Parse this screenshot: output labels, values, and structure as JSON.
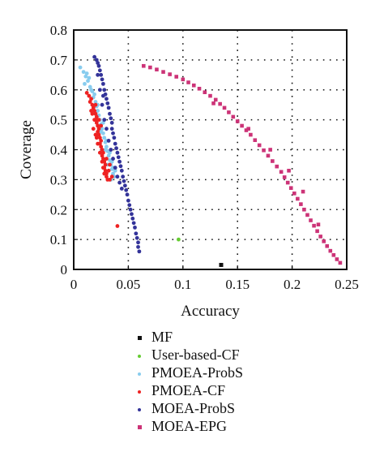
{
  "chart_data": {
    "type": "scatter",
    "xlabel": "Accuracy",
    "ylabel": "Coverage",
    "xlim": [
      0,
      0.25
    ],
    "ylim": [
      0,
      0.8
    ],
    "x_ticks": [
      "0",
      "0.05",
      "0.1",
      "0.15",
      "0.2",
      "0.25"
    ],
    "y_ticks": [
      "0",
      "0.1",
      "0.2",
      "0.3",
      "0.4",
      "0.5",
      "0.6",
      "0.7",
      "0.8"
    ],
    "grid": true,
    "legend_position": "below",
    "series": [
      {
        "name": "MF",
        "color": "#111111",
        "marker": "square",
        "points": [
          [
            0.135,
            0.015
          ]
        ]
      },
      {
        "name": "User-based-CF",
        "color": "#66cc33",
        "marker": "dot",
        "points": [
          [
            0.096,
            0.1
          ]
        ]
      },
      {
        "name": "PMOEA-ProbS",
        "color": "#88ccee",
        "marker": "dot",
        "points": [
          [
            0.006,
            0.675
          ],
          [
            0.009,
            0.66
          ],
          [
            0.011,
            0.645
          ],
          [
            0.013,
            0.63
          ],
          [
            0.015,
            0.61
          ],
          [
            0.017,
            0.595
          ],
          [
            0.018,
            0.575
          ],
          [
            0.02,
            0.56
          ],
          [
            0.021,
            0.545
          ],
          [
            0.022,
            0.53
          ],
          [
            0.023,
            0.515
          ],
          [
            0.024,
            0.5
          ],
          [
            0.025,
            0.485
          ],
          [
            0.026,
            0.47
          ],
          [
            0.027,
            0.455
          ],
          [
            0.028,
            0.44
          ],
          [
            0.029,
            0.425
          ],
          [
            0.03,
            0.41
          ],
          [
            0.031,
            0.395
          ],
          [
            0.032,
            0.38
          ],
          [
            0.033,
            0.365
          ],
          [
            0.034,
            0.35
          ],
          [
            0.035,
            0.335
          ],
          [
            0.036,
            0.32
          ],
          [
            0.037,
            0.31
          ],
          [
            0.012,
            0.655
          ],
          [
            0.016,
            0.6
          ],
          [
            0.019,
            0.585
          ],
          [
            0.022,
            0.55
          ],
          [
            0.027,
            0.49
          ],
          [
            0.03,
            0.43
          ],
          [
            0.033,
            0.39
          ],
          [
            0.036,
            0.34
          ],
          [
            0.038,
            0.33
          ],
          [
            0.034,
            0.3
          ],
          [
            0.01,
            0.62
          ],
          [
            0.014,
            0.64
          ],
          [
            0.02,
            0.52
          ],
          [
            0.025,
            0.46
          ],
          [
            0.029,
            0.4
          ],
          [
            0.031,
            0.35
          ],
          [
            0.035,
            0.36
          ]
        ]
      },
      {
        "name": "PMOEA-CF",
        "color": "#ee2222",
        "marker": "dot",
        "points": [
          [
            0.012,
            0.59
          ],
          [
            0.014,
            0.58
          ],
          [
            0.016,
            0.57
          ],
          [
            0.017,
            0.55
          ],
          [
            0.018,
            0.54
          ],
          [
            0.019,
            0.53
          ],
          [
            0.02,
            0.52
          ],
          [
            0.02,
            0.5
          ],
          [
            0.021,
            0.49
          ],
          [
            0.022,
            0.48
          ],
          [
            0.022,
            0.46
          ],
          [
            0.023,
            0.45
          ],
          [
            0.024,
            0.44
          ],
          [
            0.024,
            0.42
          ],
          [
            0.025,
            0.41
          ],
          [
            0.026,
            0.4
          ],
          [
            0.026,
            0.38
          ],
          [
            0.027,
            0.37
          ],
          [
            0.028,
            0.36
          ],
          [
            0.028,
            0.34
          ],
          [
            0.029,
            0.33
          ],
          [
            0.03,
            0.32
          ],
          [
            0.03,
            0.31
          ],
          [
            0.031,
            0.3
          ],
          [
            0.033,
            0.3
          ],
          [
            0.035,
            0.31
          ],
          [
            0.015,
            0.56
          ],
          [
            0.017,
            0.52
          ],
          [
            0.019,
            0.5
          ],
          [
            0.021,
            0.51
          ],
          [
            0.023,
            0.47
          ],
          [
            0.025,
            0.43
          ],
          [
            0.027,
            0.39
          ],
          [
            0.029,
            0.35
          ],
          [
            0.032,
            0.33
          ],
          [
            0.018,
            0.47
          ],
          [
            0.02,
            0.45
          ],
          [
            0.022,
            0.42
          ],
          [
            0.024,
            0.39
          ],
          [
            0.026,
            0.36
          ],
          [
            0.028,
            0.32
          ],
          [
            0.016,
            0.53
          ],
          [
            0.02,
            0.55
          ],
          [
            0.023,
            0.5
          ],
          [
            0.025,
            0.48
          ],
          [
            0.03,
            0.37
          ],
          [
            0.033,
            0.35
          ],
          [
            0.021,
            0.44
          ],
          [
            0.027,
            0.34
          ],
          [
            0.04,
            0.145
          ]
        ]
      },
      {
        "name": "MOEA-ProbS",
        "color": "#333399",
        "marker": "dot",
        "points": [
          [
            0.019,
            0.71
          ],
          [
            0.021,
            0.7
          ],
          [
            0.022,
            0.69
          ],
          [
            0.023,
            0.68
          ],
          [
            0.024,
            0.665
          ],
          [
            0.025,
            0.65
          ],
          [
            0.026,
            0.635
          ],
          [
            0.027,
            0.62
          ],
          [
            0.028,
            0.6
          ],
          [
            0.029,
            0.585
          ],
          [
            0.03,
            0.57
          ],
          [
            0.031,
            0.555
          ],
          [
            0.032,
            0.54
          ],
          [
            0.033,
            0.52
          ],
          [
            0.034,
            0.505
          ],
          [
            0.035,
            0.49
          ],
          [
            0.035,
            0.47
          ],
          [
            0.036,
            0.455
          ],
          [
            0.037,
            0.44
          ],
          [
            0.038,
            0.42
          ],
          [
            0.039,
            0.405
          ],
          [
            0.04,
            0.39
          ],
          [
            0.041,
            0.375
          ],
          [
            0.042,
            0.36
          ],
          [
            0.043,
            0.345
          ],
          [
            0.044,
            0.33
          ],
          [
            0.045,
            0.31
          ],
          [
            0.046,
            0.295
          ],
          [
            0.047,
            0.28
          ],
          [
            0.048,
            0.265
          ],
          [
            0.049,
            0.25
          ],
          [
            0.05,
            0.23
          ],
          [
            0.051,
            0.215
          ],
          [
            0.052,
            0.2
          ],
          [
            0.053,
            0.185
          ],
          [
            0.054,
            0.17
          ],
          [
            0.055,
            0.155
          ],
          [
            0.056,
            0.14
          ],
          [
            0.057,
            0.12
          ],
          [
            0.058,
            0.105
          ],
          [
            0.059,
            0.09
          ],
          [
            0.059,
            0.075
          ],
          [
            0.06,
            0.06
          ],
          [
            0.024,
            0.6
          ],
          [
            0.026,
            0.55
          ],
          [
            0.028,
            0.5
          ],
          [
            0.03,
            0.47
          ],
          [
            0.032,
            0.43
          ],
          [
            0.034,
            0.4
          ],
          [
            0.036,
            0.37
          ],
          [
            0.038,
            0.34
          ],
          [
            0.04,
            0.31
          ],
          [
            0.042,
            0.29
          ],
          [
            0.044,
            0.27
          ],
          [
            0.022,
            0.65
          ],
          [
            0.027,
            0.58
          ]
        ]
      },
      {
        "name": "MOEA-EPG",
        "color": "#cc3377",
        "marker": "square",
        "points": [
          [
            0.064,
            0.68
          ],
          [
            0.07,
            0.675
          ],
          [
            0.076,
            0.668
          ],
          [
            0.082,
            0.66
          ],
          [
            0.088,
            0.652
          ],
          [
            0.094,
            0.644
          ],
          [
            0.1,
            0.635
          ],
          [
            0.105,
            0.625
          ],
          [
            0.11,
            0.615
          ],
          [
            0.115,
            0.604
          ],
          [
            0.12,
            0.592
          ],
          [
            0.125,
            0.58
          ],
          [
            0.13,
            0.567
          ],
          [
            0.134,
            0.553
          ],
          [
            0.138,
            0.54
          ],
          [
            0.142,
            0.525
          ],
          [
            0.146,
            0.51
          ],
          [
            0.15,
            0.495
          ],
          [
            0.154,
            0.48
          ],
          [
            0.158,
            0.465
          ],
          [
            0.162,
            0.45
          ],
          [
            0.166,
            0.432
          ],
          [
            0.17,
            0.415
          ],
          [
            0.174,
            0.398
          ],
          [
            0.178,
            0.38
          ],
          [
            0.182,
            0.362
          ],
          [
            0.186,
            0.344
          ],
          [
            0.19,
            0.326
          ],
          [
            0.193,
            0.308
          ],
          [
            0.196,
            0.29
          ],
          [
            0.199,
            0.272
          ],
          [
            0.202,
            0.254
          ],
          [
            0.205,
            0.236
          ],
          [
            0.208,
            0.218
          ],
          [
            0.211,
            0.2
          ],
          [
            0.214,
            0.182
          ],
          [
            0.217,
            0.164
          ],
          [
            0.22,
            0.146
          ],
          [
            0.223,
            0.128
          ],
          [
            0.226,
            0.11
          ],
          [
            0.229,
            0.094
          ],
          [
            0.232,
            0.078
          ],
          [
            0.235,
            0.062
          ],
          [
            0.238,
            0.048
          ],
          [
            0.241,
            0.034
          ],
          [
            0.244,
            0.022
          ],
          [
            0.128,
            0.555
          ],
          [
            0.16,
            0.47
          ],
          [
            0.18,
            0.4
          ],
          [
            0.197,
            0.33
          ],
          [
            0.21,
            0.26
          ],
          [
            0.224,
            0.15
          ]
        ]
      }
    ]
  }
}
